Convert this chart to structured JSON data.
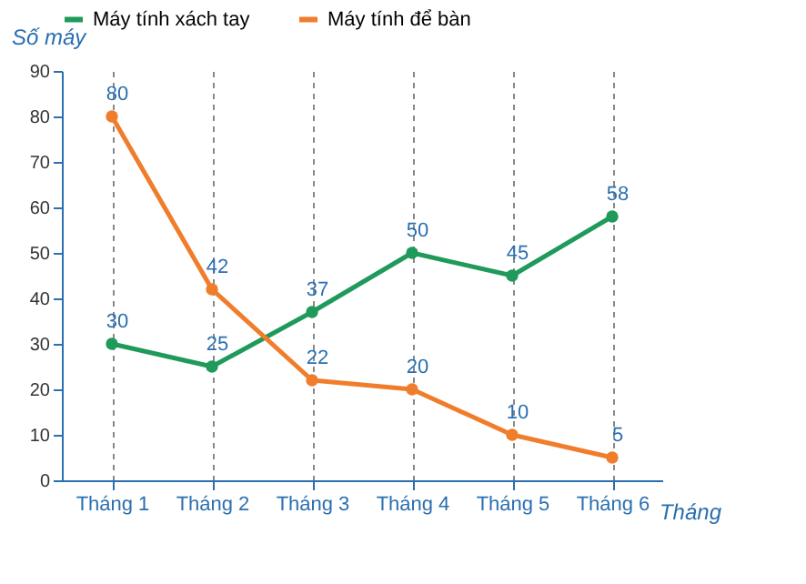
{
  "chart_data": {
    "type": "line",
    "xlabel": "Tháng",
    "ylabel": "Số máy",
    "categories": [
      "Tháng 1",
      "Tháng 2",
      "Tháng 3",
      "Tháng 4",
      "Tháng 5",
      "Tháng 6"
    ],
    "series": [
      {
        "name": "Máy tính xách tay",
        "color": "#1f9a5b",
        "values": [
          30,
          25,
          37,
          50,
          45,
          58
        ]
      },
      {
        "name": "Máy tính để bàn",
        "color": "#f07d2c",
        "values": [
          80,
          42,
          22,
          20,
          10,
          5
        ]
      }
    ],
    "ylim": [
      0,
      90
    ],
    "yticks": [
      0,
      10,
      20,
      30,
      40,
      50,
      60,
      70,
      80,
      90
    ],
    "grid": "x",
    "legend": "top",
    "marker": "circle",
    "data_labels": true
  }
}
